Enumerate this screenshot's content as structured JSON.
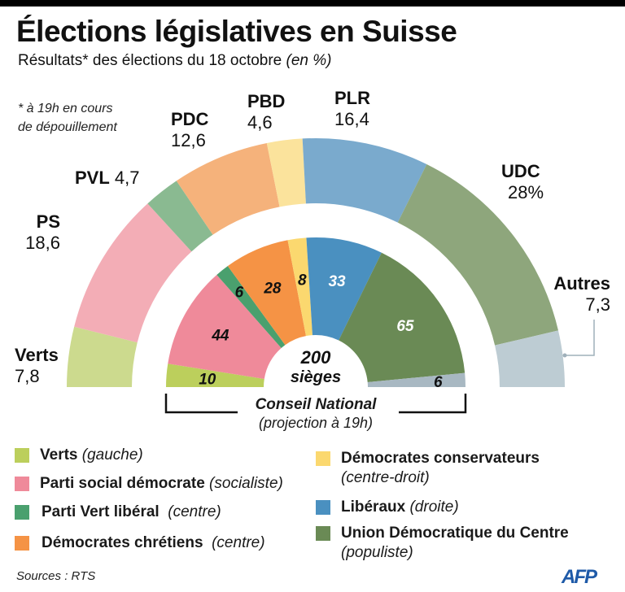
{
  "header": {
    "title": "Élections législatives en Suisse",
    "subtitle_main": "Résultats* des élections du 18 octobre ",
    "subtitle_italic": "(en %)",
    "footnote_line1": "* à 19h en cours",
    "footnote_line2": "de dépouillement"
  },
  "chart_data": [
    {
      "type": "pie",
      "subtype": "semicircle-donut",
      "title": "Résultats* des élections du 18 octobre (en %)",
      "unit": "%",
      "categories": [
        "Verts",
        "PS",
        "PVL",
        "PDC",
        "PBD",
        "PLR",
        "UDC",
        "Autres"
      ],
      "values": [
        7.8,
        18.6,
        4.7,
        12.6,
        4.6,
        16.4,
        28,
        7.3
      ],
      "value_labels": [
        "7,8",
        "18,6",
        "4,7",
        "12,6",
        "4,6",
        "16,4",
        "28%",
        "7,3"
      ],
      "colors": [
        "#ccda8e",
        "#f3adb6",
        "#8aba91",
        "#f5b27b",
        "#fbe39c",
        "#7aaacd",
        "#8ea67c",
        "#bdccd3"
      ]
    },
    {
      "type": "pie",
      "subtype": "semicircle-donut",
      "title": "Conseil National",
      "subtitle": "(projection à 19h)",
      "center_label_line1": "200",
      "center_label_line2": "sièges",
      "total": 200,
      "categories": [
        "Verts",
        "PS",
        "PVL",
        "PDC",
        "PBD",
        "PLR",
        "UDC",
        "Autres"
      ],
      "values": [
        10,
        44,
        6,
        28,
        8,
        33,
        65,
        6
      ],
      "value_labels": [
        "10",
        "44",
        "6",
        "28",
        "8",
        "33",
        "65",
        "6"
      ],
      "label_colors": [
        "#111111",
        "#111111",
        "#111111",
        "#111111",
        "#111111",
        "#ffffff",
        "#ffffff",
        "#111111"
      ],
      "colors": [
        "#bccf5c",
        "#ef8a9a",
        "#4aa06e",
        "#f59345",
        "#fbd86f",
        "#4a90c0",
        "#6a8a55",
        "#a8b8c2"
      ]
    }
  ],
  "legend": [
    {
      "name": "Verts",
      "note": "(gauche)",
      "color": "#bccf5c"
    },
    {
      "name": "Parti social démocrate",
      "note": "(socialiste)",
      "color": "#ef8a9a"
    },
    {
      "name": "Parti Vert libéral",
      "note": "(centre)",
      "color": "#4aa06e"
    },
    {
      "name": "Démocrates chrétiens",
      "note": "(centre)",
      "color": "#f59345"
    },
    {
      "name": "Démocrates conservateurs",
      "note": "(centre-droit)",
      "color": "#fbd86f"
    },
    {
      "name": "Libéraux",
      "note": "(droite)",
      "color": "#4a90c0"
    },
    {
      "name": "Union Démocratique du Centre",
      "note": "(populiste)",
      "color": "#6a8a55"
    }
  ],
  "footer": {
    "source": "Sources : RTS",
    "logo": "AFP"
  }
}
